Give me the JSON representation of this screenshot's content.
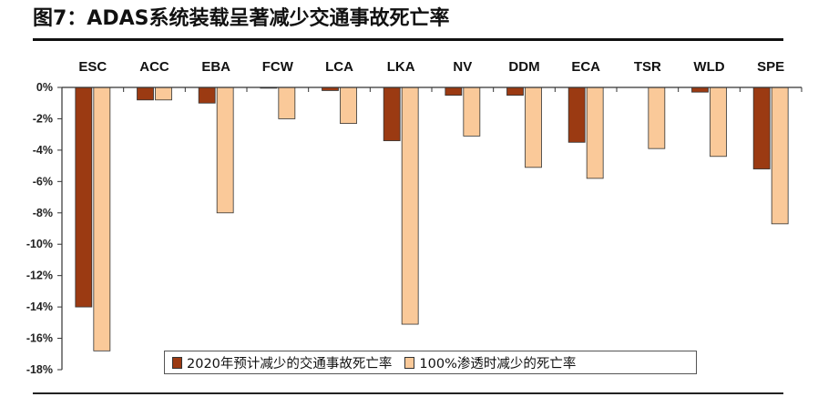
{
  "title": "图7：ADAS系统装载呈著减少交通事故死亡率",
  "colors": {
    "series1": "#9B3A12",
    "series2": "#FAC999",
    "axis": "#333333"
  },
  "chart_data": {
    "type": "bar",
    "categories": [
      "ESC",
      "ACC",
      "EBA",
      "FCW",
      "LCA",
      "LKA",
      "NV",
      "DDM",
      "ECA",
      "TSR",
      "WLD",
      "SPE"
    ],
    "series": [
      {
        "name": "2020年预计减少的交通事故死亡率",
        "values": [
          -14.0,
          -0.8,
          -1.0,
          -0.05,
          -0.2,
          -3.4,
          -0.5,
          -0.5,
          -3.5,
          0,
          -0.3,
          -5.2
        ]
      },
      {
        "name": "100%渗透时减少的死亡率",
        "values": [
          -16.8,
          -0.8,
          -8.0,
          -2.0,
          -2.3,
          -15.1,
          -3.1,
          -5.1,
          -5.8,
          -3.9,
          -4.4,
          -8.7
        ]
      }
    ],
    "yticks": [
      "0%",
      "-2%",
      "-4%",
      "-6%",
      "-8%",
      "-10%",
      "-12%",
      "-14%",
      "-16%",
      "-18%"
    ],
    "ylim": [
      -18,
      0
    ],
    "legend_position": "bottom"
  }
}
